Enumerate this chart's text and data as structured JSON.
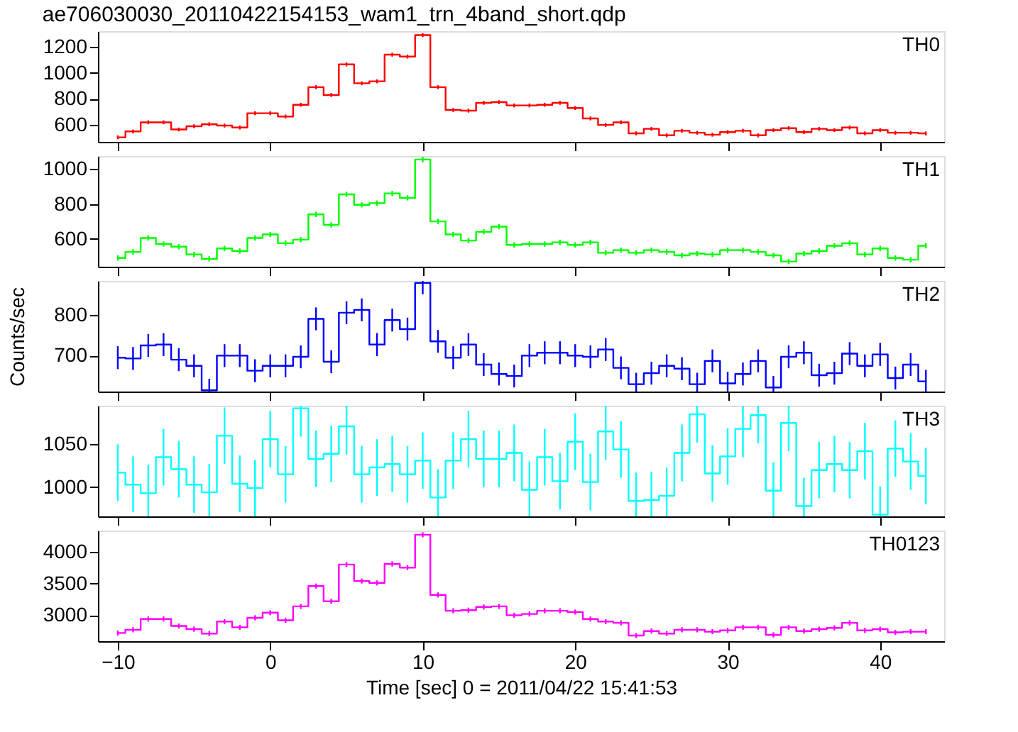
{
  "chart_data": [
    {
      "type": "step",
      "title": "ae706030030_20110422154153_wam1_trn_4band_short.qdp",
      "x": [
        -10,
        -9,
        -8,
        -7,
        -6,
        -5,
        -4,
        -3,
        -2,
        -1,
        0,
        1,
        2,
        3,
        4,
        5,
        6,
        7,
        8,
        9,
        10,
        11,
        12,
        13,
        14,
        15,
        16,
        17,
        18,
        19,
        20,
        21,
        22,
        23,
        24,
        25,
        26,
        27,
        28,
        29,
        30,
        31,
        32,
        33,
        34,
        35,
        36,
        37,
        38,
        39,
        40,
        41,
        42,
        43
      ],
      "xlim": [
        -11.3,
        44.2
      ],
      "xticks": [
        -10,
        0,
        10,
        20,
        30,
        40
      ],
      "ylim": [
        470,
        1320
      ],
      "yticks": [
        600,
        800,
        1000,
        1200
      ],
      "tick_labels": "y",
      "series": [
        {
          "name": "TH0",
          "color": "#ff0000",
          "values": [
            505,
            550,
            620,
            620,
            565,
            590,
            605,
            595,
            580,
            690,
            690,
            665,
            755,
            890,
            830,
            1065,
            920,
            935,
            1140,
            1125,
            1290,
            890,
            715,
            710,
            770,
            775,
            750,
            750,
            755,
            770,
            730,
            650,
            600,
            620,
            535,
            570,
            520,
            555,
            540,
            525,
            545,
            555,
            520,
            560,
            575,
            545,
            570,
            560,
            580,
            535,
            560,
            540,
            540,
            535
          ],
          "errors": [
            15,
            15,
            15,
            15,
            15,
            15,
            15,
            15,
            15,
            15,
            15,
            15,
            15,
            15,
            15,
            15,
            15,
            15,
            15,
            15,
            15,
            15,
            15,
            15,
            15,
            15,
            15,
            15,
            15,
            15,
            15,
            15,
            15,
            15,
            15,
            15,
            15,
            15,
            15,
            15,
            15,
            15,
            15,
            15,
            15,
            15,
            15,
            15,
            15,
            15,
            15,
            15,
            15,
            15
          ]
        }
      ]
    },
    {
      "type": "step",
      "x": [
        -10,
        -9,
        -8,
        -7,
        -6,
        -5,
        -4,
        -3,
        -2,
        -1,
        0,
        1,
        2,
        3,
        4,
        5,
        6,
        7,
        8,
        9,
        10,
        11,
        12,
        13,
        14,
        15,
        16,
        17,
        18,
        19,
        20,
        21,
        22,
        23,
        24,
        25,
        26,
        27,
        28,
        29,
        30,
        31,
        32,
        33,
        34,
        35,
        36,
        37,
        38,
        39,
        40,
        41,
        42,
        43
      ],
      "xlim": [
        -11.3,
        44.2
      ],
      "xticks": [
        -10,
        0,
        10,
        20,
        30,
        40
      ],
      "ylim": [
        440,
        1075
      ],
      "yticks": [
        600,
        800,
        1000
      ],
      "tick_labels": "y",
      "series": [
        {
          "name": "TH1",
          "color": "#00ff00",
          "values": [
            490,
            525,
            605,
            570,
            555,
            510,
            485,
            545,
            530,
            605,
            625,
            575,
            595,
            740,
            680,
            855,
            795,
            805,
            860,
            835,
            1055,
            700,
            625,
            590,
            640,
            670,
            565,
            570,
            570,
            580,
            565,
            580,
            520,
            535,
            520,
            535,
            525,
            505,
            515,
            510,
            535,
            535,
            525,
            505,
            470,
            515,
            530,
            560,
            575,
            510,
            545,
            490,
            480,
            560
          ],
          "errors": [
            15,
            15,
            15,
            15,
            15,
            15,
            15,
            15,
            15,
            15,
            15,
            15,
            15,
            15,
            15,
            15,
            15,
            15,
            15,
            15,
            15,
            15,
            15,
            15,
            15,
            15,
            15,
            15,
            15,
            15,
            15,
            15,
            15,
            15,
            15,
            15,
            15,
            15,
            15,
            15,
            15,
            15,
            15,
            15,
            15,
            15,
            15,
            15,
            15,
            15,
            15,
            15,
            15,
            15
          ]
        }
      ]
    },
    {
      "type": "step",
      "ylabel": "Counts/sec",
      "x": [
        -10,
        -9,
        -8,
        -7,
        -6,
        -5,
        -4,
        -3,
        -2,
        -1,
        0,
        1,
        2,
        3,
        4,
        5,
        6,
        7,
        8,
        9,
        10,
        11,
        12,
        13,
        14,
        15,
        16,
        17,
        18,
        19,
        20,
        21,
        22,
        23,
        24,
        25,
        26,
        27,
        28,
        29,
        30,
        31,
        32,
        33,
        34,
        35,
        36,
        37,
        38,
        39,
        40,
        41,
        42,
        43
      ],
      "xlim": [
        -11.3,
        44.2
      ],
      "xticks": [
        -10,
        0,
        10,
        20,
        30,
        40
      ],
      "ylim": [
        612,
        883
      ],
      "yticks": [
        700,
        800
      ],
      "tick_labels": "y",
      "series": [
        {
          "name": "TH2",
          "color": "#0000ff",
          "values": [
            695,
            693,
            725,
            727,
            690,
            675,
            615,
            700,
            700,
            663,
            675,
            675,
            697,
            790,
            685,
            805,
            812,
            727,
            787,
            765,
            878,
            735,
            695,
            727,
            678,
            655,
            650,
            700,
            707,
            707,
            700,
            697,
            715,
            670,
            630,
            657,
            675,
            668,
            630,
            687,
            632,
            655,
            687,
            622,
            697,
            707,
            652,
            657,
            705,
            675,
            703,
            645,
            678,
            637
          ],
          "errors": [
            28,
            28,
            28,
            28,
            28,
            28,
            28,
            28,
            28,
            28,
            28,
            28,
            28,
            28,
            28,
            28,
            28,
            28,
            28,
            28,
            28,
            28,
            28,
            28,
            28,
            28,
            28,
            28,
            28,
            28,
            28,
            28,
            28,
            28,
            28,
            28,
            28,
            28,
            28,
            28,
            28,
            28,
            28,
            28,
            28,
            28,
            28,
            28,
            28,
            28,
            28,
            28,
            28,
            28
          ]
        }
      ]
    },
    {
      "type": "step",
      "x": [
        -10,
        -9,
        -8,
        -7,
        -6,
        -5,
        -4,
        -3,
        -2,
        -1,
        0,
        1,
        2,
        3,
        4,
        5,
        6,
        7,
        8,
        9,
        10,
        11,
        12,
        13,
        14,
        15,
        16,
        17,
        18,
        19,
        20,
        21,
        22,
        23,
        24,
        25,
        26,
        27,
        28,
        29,
        30,
        31,
        32,
        33,
        34,
        35,
        36,
        37,
        38,
        39,
        40,
        41,
        42,
        43
      ],
      "xlim": [
        -11.3,
        44.2
      ],
      "xticks": [
        -10,
        0,
        10,
        20,
        30,
        40
      ],
      "ylim": [
        966,
        1095
      ],
      "yticks": [
        1000,
        1050
      ],
      "tick_labels": "y",
      "series": [
        {
          "name": "TH3",
          "color": "#00ffff",
          "values": [
            1017,
            1003,
            993,
            1035,
            1021,
            1003,
            994,
            1060,
            1004,
            999,
            1056,
            1015,
            1092,
            1033,
            1039,
            1071,
            1015,
            1023,
            1027,
            1015,
            1031,
            988,
            1031,
            1056,
            1033,
            1033,
            1040,
            997,
            1035,
            1007,
            1053,
            1006,
            1065,
            1044,
            984,
            985,
            990,
            1040,
            1085,
            1016,
            1036,
            1068,
            1084,
            996,
            1075,
            978,
            1020,
            1027,
            1020,
            1042,
            968,
            1045,
            1030,
            1013
          ],
          "errors": [
            [
              984,
              1050
            ],
            [
              971,
              1036
            ],
            [
              966,
              1026
            ],
            [
              1002,
              1068
            ],
            [
              988,
              1054
            ],
            [
              970,
              1036
            ],
            [
              966,
              1027
            ],
            [
              1027,
              1093
            ],
            [
              971,
              1037
            ],
            [
              966,
              1032
            ],
            [
              1023,
              1089
            ],
            [
              982,
              1048
            ],
            [
              1059,
              1095
            ],
            [
              1000,
              1066
            ],
            [
              1006,
              1072
            ],
            [
              1038,
              1095
            ],
            [
              982,
              1048
            ],
            [
              990,
              1056
            ],
            [
              994,
              1060
            ],
            [
              982,
              1048
            ],
            [
              998,
              1064
            ],
            [
              966,
              1021
            ],
            [
              998,
              1064
            ],
            [
              1023,
              1089
            ],
            [
              1000,
              1066
            ],
            [
              1000,
              1066
            ],
            [
              1007,
              1073
            ],
            [
              966,
              1030
            ],
            [
              1002,
              1068
            ],
            [
              974,
              1040
            ],
            [
              1020,
              1086
            ],
            [
              973,
              1039
            ],
            [
              1032,
              1095
            ],
            [
              1011,
              1077
            ],
            [
              966,
              1017
            ],
            [
              966,
              1018
            ],
            [
              966,
              1023
            ],
            [
              1007,
              1073
            ],
            [
              1052,
              1095
            ],
            [
              983,
              1049
            ],
            [
              1003,
              1069
            ],
            [
              1035,
              1095
            ],
            [
              1051,
              1095
            ],
            [
              966,
              1029
            ],
            [
              1042,
              1095
            ],
            [
              966,
              1011
            ],
            [
              987,
              1053
            ],
            [
              994,
              1060
            ],
            [
              987,
              1053
            ],
            [
              1009,
              1075
            ],
            [
              966,
              1001
            ],
            [
              1012,
              1078
            ],
            [
              997,
              1063
            ],
            [
              980,
              1046
            ]
          ]
        }
      ]
    },
    {
      "type": "step",
      "xlabel": "Time [sec] 0 = 2011/04/22 15:41:53",
      "x": [
        -10,
        -9,
        -8,
        -7,
        -6,
        -5,
        -4,
        -3,
        -2,
        -1,
        0,
        1,
        2,
        3,
        4,
        5,
        6,
        7,
        8,
        9,
        10,
        11,
        12,
        13,
        14,
        15,
        16,
        17,
        18,
        19,
        20,
        21,
        22,
        23,
        24,
        25,
        26,
        27,
        28,
        29,
        30,
        31,
        32,
        33,
        34,
        35,
        36,
        37,
        38,
        39,
        40,
        41,
        42,
        43
      ],
      "xlim": [
        -11.3,
        44.2
      ],
      "xticks": [
        -10,
        0,
        10,
        20,
        30,
        40
      ],
      "ylim": [
        2590,
        4336
      ],
      "yticks": [
        3000,
        3500,
        4000
      ],
      "series": [
        {
          "name": "TH0123",
          "color": "#ff00ff",
          "values": [
            2720,
            2770,
            2940,
            2940,
            2830,
            2780,
            2710,
            2900,
            2810,
            2960,
            3040,
            2920,
            3140,
            3460,
            3220,
            3800,
            3540,
            3510,
            3810,
            3750,
            4270,
            3320,
            3070,
            3080,
            3130,
            3140,
            3000,
            3020,
            3070,
            3070,
            3050,
            2940,
            2900,
            2880,
            2680,
            2750,
            2710,
            2770,
            2770,
            2740,
            2760,
            2810,
            2810,
            2690,
            2810,
            2750,
            2780,
            2800,
            2880,
            2760,
            2780,
            2730,
            2740,
            2740
          ],
          "errors": [
            40,
            40,
            40,
            40,
            40,
            40,
            40,
            40,
            40,
            40,
            40,
            40,
            40,
            40,
            40,
            40,
            40,
            40,
            40,
            40,
            40,
            40,
            40,
            40,
            40,
            40,
            40,
            40,
            40,
            40,
            40,
            40,
            40,
            40,
            40,
            40,
            40,
            40,
            40,
            40,
            40,
            40,
            40,
            40,
            40,
            40,
            40,
            40,
            40,
            40,
            40,
            40,
            40,
            40
          ]
        }
      ]
    }
  ]
}
